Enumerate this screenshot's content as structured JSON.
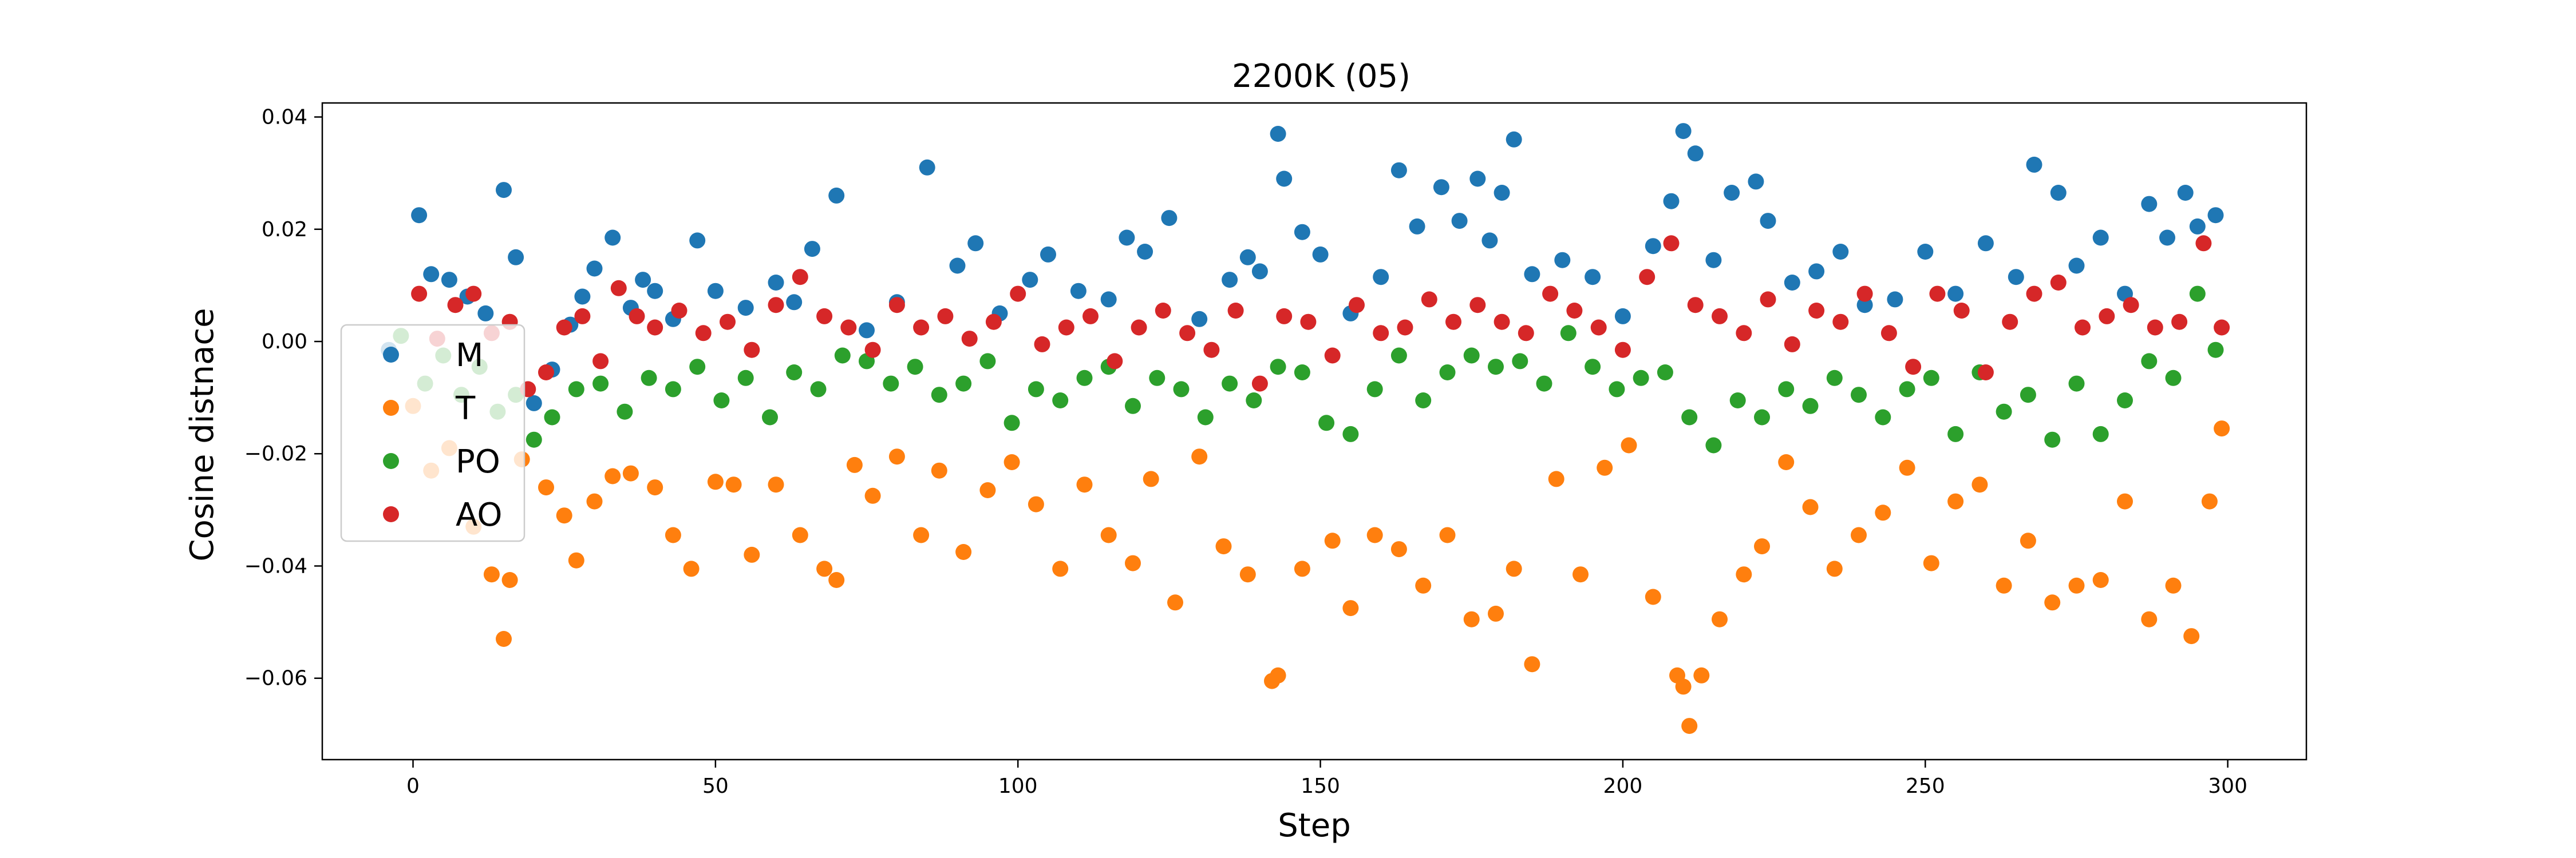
{
  "chart_data": {
    "type": "scatter",
    "title": "2200K (05)",
    "xlabel": "Step",
    "ylabel": "Cosine distnace",
    "xlim": [
      -15,
      313
    ],
    "ylim": [
      -0.0745,
      0.0425
    ],
    "xticks": [
      0,
      50,
      100,
      150,
      200,
      250,
      300
    ],
    "xtick_labels": [
      "0",
      "50",
      "100",
      "150",
      "200",
      "250",
      "300"
    ],
    "yticks": [
      -0.06,
      -0.04,
      -0.02,
      0.0,
      0.02,
      0.04
    ],
    "ytick_labels": [
      "−0.06",
      "−0.04",
      "−0.02",
      "0.00",
      "0.02",
      "0.04"
    ],
    "grid": false,
    "legend_position": "center-left",
    "series": [
      {
        "name": "M",
        "color": "#1f77b4",
        "x": [
          -4,
          1,
          3,
          6,
          9,
          12,
          15,
          17,
          20,
          23,
          26,
          28,
          30,
          33,
          36,
          38,
          40,
          43,
          47,
          50,
          55,
          60,
          63,
          66,
          70,
          75,
          80,
          85,
          90,
          93,
          97,
          102,
          105,
          110,
          115,
          118,
          121,
          125,
          130,
          135,
          138,
          140,
          143,
          144,
          147,
          150,
          155,
          160,
          163,
          166,
          170,
          173,
          176,
          178,
          180,
          182,
          185,
          190,
          195,
          200,
          205,
          208,
          210,
          212,
          215,
          218,
          222,
          224,
          228,
          232,
          236,
          240,
          245,
          250,
          255,
          260,
          265,
          268,
          272,
          275,
          279,
          283,
          287,
          290,
          293,
          295,
          298
        ],
        "y": [
          -0.0015,
          0.0225,
          0.012,
          0.011,
          0.008,
          0.005,
          0.027,
          0.015,
          -0.011,
          -0.005,
          0.003,
          0.008,
          0.013,
          0.0185,
          0.006,
          0.011,
          0.009,
          0.004,
          0.018,
          0.009,
          0.006,
          0.0105,
          0.007,
          0.0165,
          0.026,
          0.002,
          0.007,
          0.031,
          0.0135,
          0.0175,
          0.005,
          0.011,
          0.0155,
          0.009,
          0.0075,
          0.0185,
          0.016,
          0.022,
          0.004,
          0.011,
          0.015,
          0.0125,
          0.037,
          0.029,
          0.0195,
          0.0155,
          0.005,
          0.0115,
          0.0305,
          0.0205,
          0.0275,
          0.0215,
          0.029,
          0.018,
          0.0265,
          0.036,
          0.012,
          0.0145,
          0.0115,
          0.0045,
          0.017,
          0.025,
          0.0375,
          0.0335,
          0.0145,
          0.0265,
          0.0285,
          0.0215,
          0.0105,
          0.0125,
          0.016,
          0.0065,
          0.0075,
          0.016,
          0.0085,
          0.0175,
          0.0115,
          0.0315,
          0.0265,
          0.0135,
          0.0185,
          0.0085,
          0.0245,
          0.0185,
          0.0265,
          0.0205,
          0.0225
        ]
      },
      {
        "name": "T",
        "color": "#ff7f0e",
        "x": [
          0,
          3,
          6,
          10,
          13,
          15,
          16,
          18,
          22,
          25,
          27,
          30,
          33,
          36,
          40,
          43,
          46,
          50,
          53,
          56,
          60,
          64,
          68,
          70,
          73,
          76,
          80,
          84,
          87,
          91,
          95,
          99,
          103,
          107,
          111,
          115,
          119,
          122,
          126,
          130,
          134,
          138,
          142,
          143,
          147,
          152,
          155,
          159,
          163,
          167,
          171,
          175,
          179,
          182,
          185,
          189,
          193,
          197,
          201,
          205,
          209,
          210,
          211,
          213,
          216,
          220,
          223,
          227,
          231,
          235,
          239,
          243,
          247,
          251,
          255,
          259,
          263,
          267,
          271,
          275,
          279,
          283,
          287,
          291,
          294,
          297,
          299
        ],
        "y": [
          -0.0115,
          -0.023,
          -0.019,
          -0.033,
          -0.0415,
          -0.053,
          -0.0425,
          -0.021,
          -0.026,
          -0.031,
          -0.039,
          -0.0285,
          -0.024,
          -0.0235,
          -0.026,
          -0.0345,
          -0.0405,
          -0.025,
          -0.0255,
          -0.038,
          -0.0255,
          -0.0345,
          -0.0405,
          -0.0425,
          -0.022,
          -0.0275,
          -0.0205,
          -0.0345,
          -0.023,
          -0.0375,
          -0.0265,
          -0.0215,
          -0.029,
          -0.0405,
          -0.0255,
          -0.0345,
          -0.0395,
          -0.0245,
          -0.0465,
          -0.0205,
          -0.0365,
          -0.0415,
          -0.0605,
          -0.0595,
          -0.0405,
          -0.0355,
          -0.0475,
          -0.0345,
          -0.037,
          -0.0435,
          -0.0345,
          -0.0495,
          -0.0485,
          -0.0405,
          -0.0575,
          -0.0245,
          -0.0415,
          -0.0225,
          -0.0185,
          -0.0455,
          -0.0595,
          -0.0615,
          -0.0685,
          -0.0595,
          -0.0495,
          -0.0415,
          -0.0365,
          -0.0215,
          -0.0295,
          -0.0405,
          -0.0345,
          -0.0305,
          -0.0225,
          -0.0395,
          -0.0285,
          -0.0255,
          -0.0435,
          -0.0355,
          -0.0465,
          -0.0435,
          -0.0425,
          -0.0285,
          -0.0495,
          -0.0435,
          -0.0525,
          -0.0285,
          -0.0155
        ]
      },
      {
        "name": "PO",
        "color": "#2ca02c",
        "x": [
          -2,
          2,
          5,
          8,
          11,
          14,
          17,
          20,
          23,
          27,
          31,
          35,
          39,
          43,
          47,
          51,
          55,
          59,
          63,
          67,
          71,
          75,
          79,
          83,
          87,
          91,
          95,
          99,
          103,
          107,
          111,
          115,
          119,
          123,
          127,
          131,
          135,
          139,
          143,
          147,
          151,
          155,
          159,
          163,
          167,
          171,
          175,
          179,
          183,
          187,
          191,
          195,
          199,
          203,
          207,
          211,
          215,
          219,
          223,
          227,
          231,
          235,
          239,
          243,
          247,
          251,
          255,
          259,
          263,
          267,
          271,
          275,
          279,
          283,
          287,
          291,
          295,
          298
        ],
        "y": [
          0.001,
          -0.0075,
          -0.0025,
          -0.0095,
          -0.0045,
          -0.0125,
          -0.0095,
          -0.0175,
          -0.0135,
          -0.0085,
          -0.0075,
          -0.0125,
          -0.0065,
          -0.0085,
          -0.0045,
          -0.0105,
          -0.0065,
          -0.0135,
          -0.0055,
          -0.0085,
          -0.0025,
          -0.0035,
          -0.0075,
          -0.0045,
          -0.0095,
          -0.0075,
          -0.0035,
          -0.0145,
          -0.0085,
          -0.0105,
          -0.0065,
          -0.0045,
          -0.0115,
          -0.0065,
          -0.0085,
          -0.0135,
          -0.0075,
          -0.0105,
          -0.0045,
          -0.0055,
          -0.0145,
          -0.0165,
          -0.0085,
          -0.0025,
          -0.0105,
          -0.0055,
          -0.0025,
          -0.0045,
          -0.0035,
          -0.0075,
          0.0015,
          -0.0045,
          -0.0085,
          -0.0065,
          -0.0055,
          -0.0135,
          -0.0185,
          -0.0105,
          -0.0135,
          -0.0085,
          -0.0115,
          -0.0065,
          -0.0095,
          -0.0135,
          -0.0085,
          -0.0065,
          -0.0165,
          -0.0055,
          -0.0125,
          -0.0095,
          -0.0175,
          -0.0075,
          -0.0165,
          -0.0105,
          -0.0035,
          -0.0065,
          0.0085,
          -0.0015
        ]
      },
      {
        "name": "AO",
        "color": "#d62728",
        "x": [
          1,
          4,
          7,
          10,
          13,
          16,
          19,
          22,
          25,
          28,
          31,
          34,
          37,
          40,
          44,
          48,
          52,
          56,
          60,
          64,
          68,
          72,
          76,
          80,
          84,
          88,
          92,
          96,
          100,
          104,
          108,
          112,
          116,
          120,
          124,
          128,
          132,
          136,
          140,
          144,
          148,
          152,
          156,
          160,
          164,
          168,
          172,
          176,
          180,
          184,
          188,
          192,
          196,
          200,
          204,
          208,
          212,
          216,
          220,
          224,
          228,
          232,
          236,
          240,
          244,
          248,
          252,
          256,
          260,
          264,
          268,
          272,
          276,
          280,
          284,
          288,
          292,
          296,
          299
        ],
        "y": [
          0.0085,
          0.0005,
          0.0065,
          0.0085,
          0.0015,
          0.0035,
          -0.0085,
          -0.0055,
          0.0025,
          0.0045,
          -0.0035,
          0.0095,
          0.0045,
          0.0025,
          0.0055,
          0.0015,
          0.0035,
          -0.0015,
          0.0065,
          0.0115,
          0.0045,
          0.0025,
          -0.0015,
          0.0065,
          0.0025,
          0.0045,
          0.0005,
          0.0035,
          0.0085,
          -0.0005,
          0.0025,
          0.0045,
          -0.0035,
          0.0025,
          0.0055,
          0.0015,
          -0.0015,
          0.0055,
          -0.0075,
          0.0045,
          0.0035,
          -0.0025,
          0.0065,
          0.0015,
          0.0025,
          0.0075,
          0.0035,
          0.0065,
          0.0035,
          0.0015,
          0.0085,
          0.0055,
          0.0025,
          -0.0015,
          0.0115,
          0.0175,
          0.0065,
          0.0045,
          0.0015,
          0.0075,
          -0.0005,
          0.0055,
          0.0035,
          0.0085,
          0.0015,
          -0.0045,
          0.0085,
          0.0055,
          -0.0055,
          0.0035,
          0.0085,
          0.0105,
          0.0025,
          0.0045,
          0.0065,
          0.0025,
          0.0035,
          0.0175,
          0.0025
        ]
      }
    ]
  }
}
